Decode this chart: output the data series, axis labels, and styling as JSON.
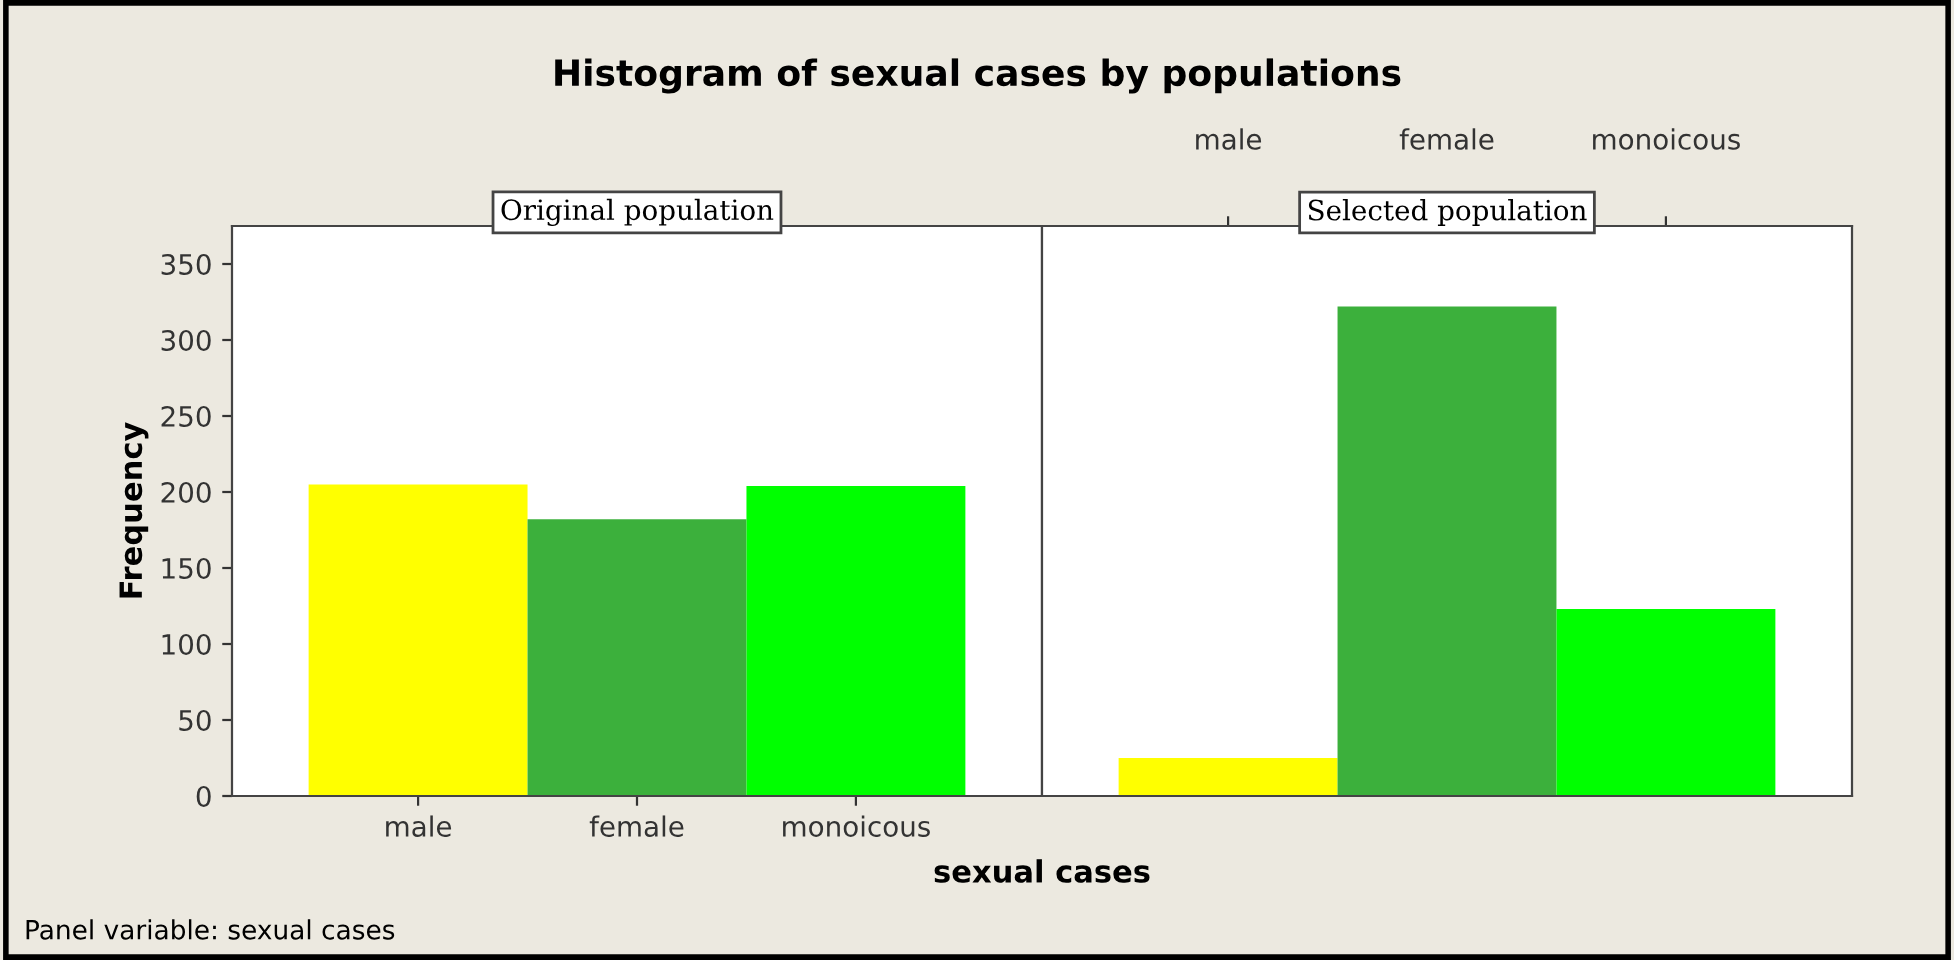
{
  "chart_data": [
    {
      "type": "bar",
      "title": "Histogram of sexual cases by populations",
      "subtitle": "Original population",
      "xlabel": "sexual cases",
      "ylabel": "Frequency",
      "annotations": [
        "Panel variable: sexual cases"
      ],
      "categories": [
        "male",
        "female",
        "monoicous"
      ],
      "values": [
        205,
        182,
        204
      ],
      "colors": [
        "#ffff00",
        "#3cb03c",
        "#00ff00"
      ],
      "ylim": [
        0,
        375
      ],
      "yticks": [
        0,
        50,
        100,
        150,
        200,
        250,
        300,
        350
      ],
      "grid": false
    },
    {
      "type": "bar",
      "subtitle": "Selected population",
      "tick_labels": "x",
      "categories": [
        "male",
        "female",
        "monoicous"
      ],
      "values": [
        25,
        322,
        123
      ],
      "colors": [
        "#ffff00",
        "#3cb03c",
        "#00ff00"
      ],
      "ylim": [
        0,
        375
      ],
      "grid": false
    }
  ]
}
